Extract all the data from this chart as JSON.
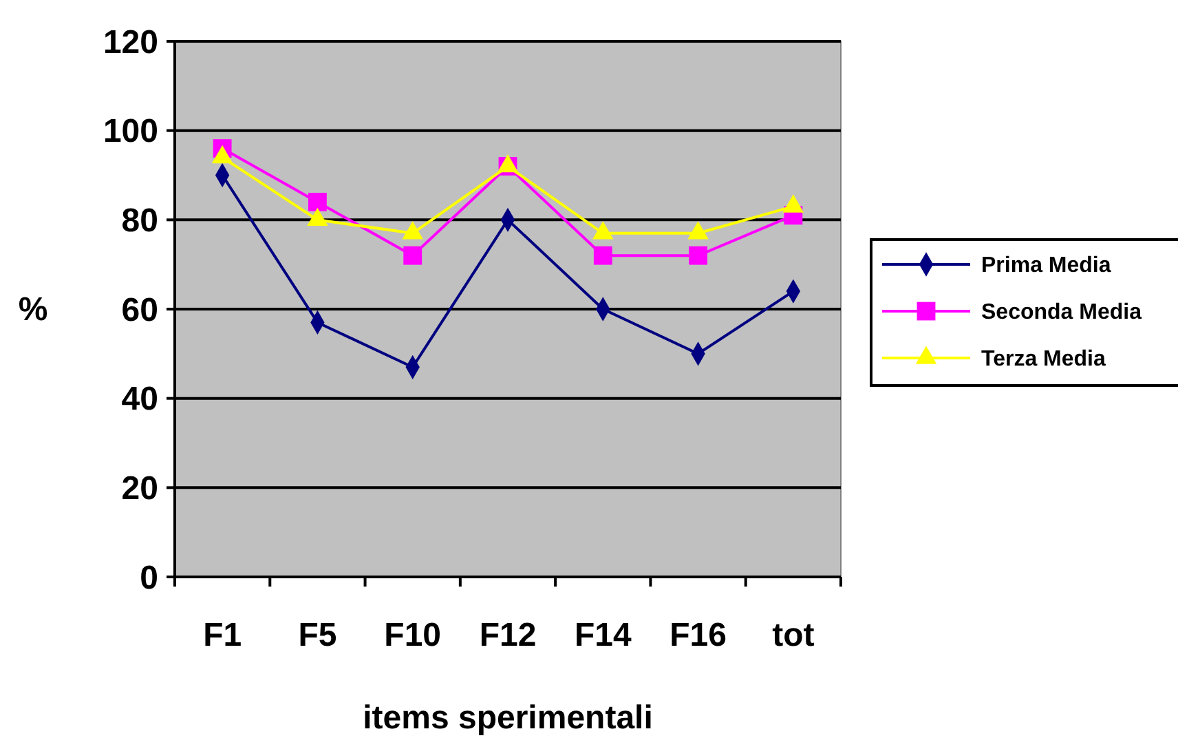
{
  "chart_data": {
    "type": "line",
    "xlabel": "items sperimentali",
    "ylabel": "%",
    "categories": [
      "F1",
      "F5",
      "F10",
      "F12",
      "F14",
      "F16",
      "tot"
    ],
    "series": [
      {
        "name": "Prima Media",
        "color": "#000080",
        "marker": "diamond",
        "values": [
          90,
          57,
          47,
          80,
          60,
          50,
          64
        ]
      },
      {
        "name": "Seconda Media",
        "color": "#ff00ff",
        "marker": "square",
        "values": [
          96,
          84,
          72,
          92,
          72,
          72,
          81
        ]
      },
      {
        "name": "Terza Media",
        "color": "#ffff00",
        "marker": "triangle",
        "values": [
          94,
          80,
          77,
          92,
          77,
          77,
          83
        ]
      }
    ],
    "ylim": [
      0,
      120
    ],
    "yticks": [
      0,
      20,
      40,
      60,
      80,
      100,
      120
    ],
    "grid": "y",
    "legend": "right"
  }
}
